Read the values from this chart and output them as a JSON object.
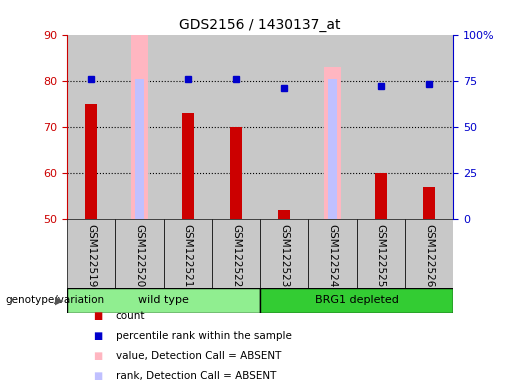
{
  "title": "GDS2156 / 1430137_at",
  "samples": [
    "GSM122519",
    "GSM122520",
    "GSM122521",
    "GSM122522",
    "GSM122523",
    "GSM122524",
    "GSM122525",
    "GSM122526"
  ],
  "count_values": [
    75,
    null,
    73,
    70,
    52,
    null,
    60,
    57
  ],
  "rank_values": [
    76,
    null,
    76,
    76,
    71,
    null,
    72,
    73
  ],
  "absent_value_bars": [
    null,
    90,
    null,
    null,
    null,
    83,
    null,
    null
  ],
  "absent_rank_bars": [
    null,
    76,
    null,
    null,
    null,
    76,
    null,
    null
  ],
  "ylim": [
    50,
    90
  ],
  "y2lim": [
    0,
    100
  ],
  "yticks": [
    50,
    60,
    70,
    80,
    90
  ],
  "y2ticks": [
    0,
    25,
    50,
    75,
    100
  ],
  "y2ticklabels": [
    "0",
    "25",
    "50",
    "75",
    "100%"
  ],
  "left_color": "#CC0000",
  "rank_dot_color": "#0000CC",
  "absent_value_color": "#FFB6C1",
  "absent_rank_color": "#C0C0FF",
  "bg_color": "#C8C8C8",
  "legend_items": [
    {
      "label": "count",
      "color": "#CC0000"
    },
    {
      "label": "percentile rank within the sample",
      "color": "#0000CC"
    },
    {
      "label": "value, Detection Call = ABSENT",
      "color": "#FFB6C1"
    },
    {
      "label": "rank, Detection Call = ABSENT",
      "color": "#C0C0FF"
    }
  ],
  "left_axis_color": "#CC0000",
  "right_axis_color": "#0000CC",
  "wt_color": "#90EE90",
  "brg_color": "#33CC33",
  "annotation_label": "genotype/variation"
}
